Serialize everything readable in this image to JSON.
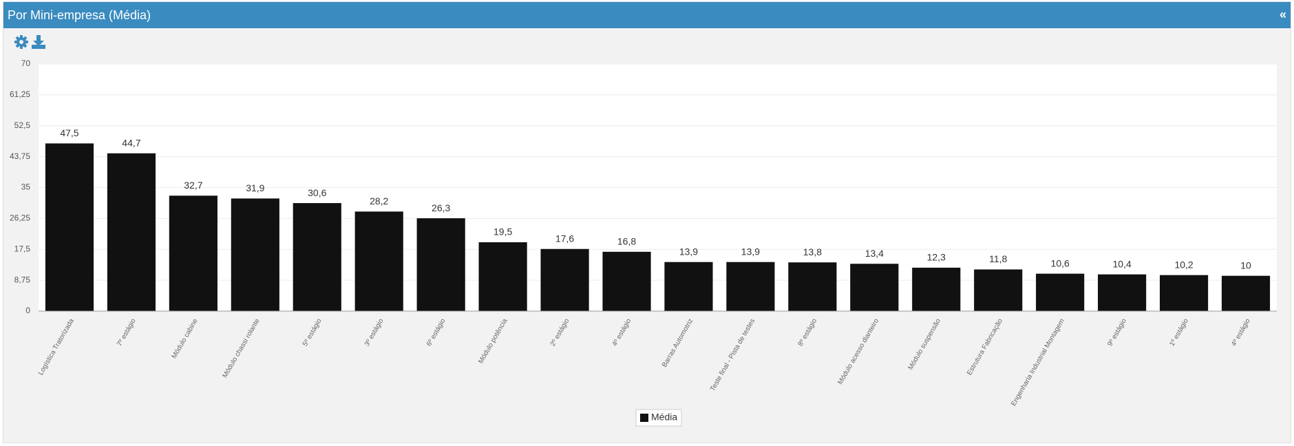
{
  "chart_data": {
    "type": "bar",
    "title": "Por Mini-empresa (Média)",
    "collapse_icon": "«",
    "categories": [
      "Logística Tratorizada",
      "7º estágio",
      "Módulo cabine",
      "Módulo chassi rolante",
      "5º estágio",
      "3º estágio",
      "6º estágio",
      "Módulo potência",
      "2º estágio",
      "4º estágio",
      "Barras Automotriz",
      "Teste final - Pista de testes",
      "8º estágio",
      "Módulo acesso dianteiro",
      "Módulo suspensão",
      "Estrutura Fabricação",
      "Engenharia Industrial Montagem",
      "9º estágio",
      "1º estágio",
      "4º estágio"
    ],
    "series": [
      {
        "name": "Média",
        "color": "#111111",
        "values": [
          47.5,
          44.7,
          32.7,
          31.9,
          30.6,
          28.2,
          26.3,
          19.5,
          17.6,
          16.8,
          13.9,
          13.9,
          13.8,
          13.4,
          12.3,
          11.8,
          10.6,
          10.4,
          10.2,
          10
        ],
        "value_labels": [
          "47,5",
          "44,7",
          "32,7",
          "31,9",
          "30,6",
          "28,2",
          "26,3",
          "19,5",
          "17,6",
          "16,8",
          "13,9",
          "13,9",
          "13,8",
          "13,4",
          "12,3",
          "11,8",
          "10,6",
          "10,4",
          "10,2",
          "10"
        ]
      }
    ],
    "ylim": [
      0,
      70
    ],
    "yticks": [
      0,
      {
        "value": 8.75,
        "label": "8,75"
      },
      {
        "value": 17.5,
        "label": "17,5"
      },
      {
        "value": 26.25,
        "label": "26,25"
      },
      35,
      {
        "value": 43.75,
        "label": "43,75"
      },
      {
        "value": 52.5,
        "label": "52,5"
      },
      {
        "value": 61.25,
        "label": "61,25"
      },
      70
    ],
    "grid": true,
    "legend": "bottom"
  }
}
